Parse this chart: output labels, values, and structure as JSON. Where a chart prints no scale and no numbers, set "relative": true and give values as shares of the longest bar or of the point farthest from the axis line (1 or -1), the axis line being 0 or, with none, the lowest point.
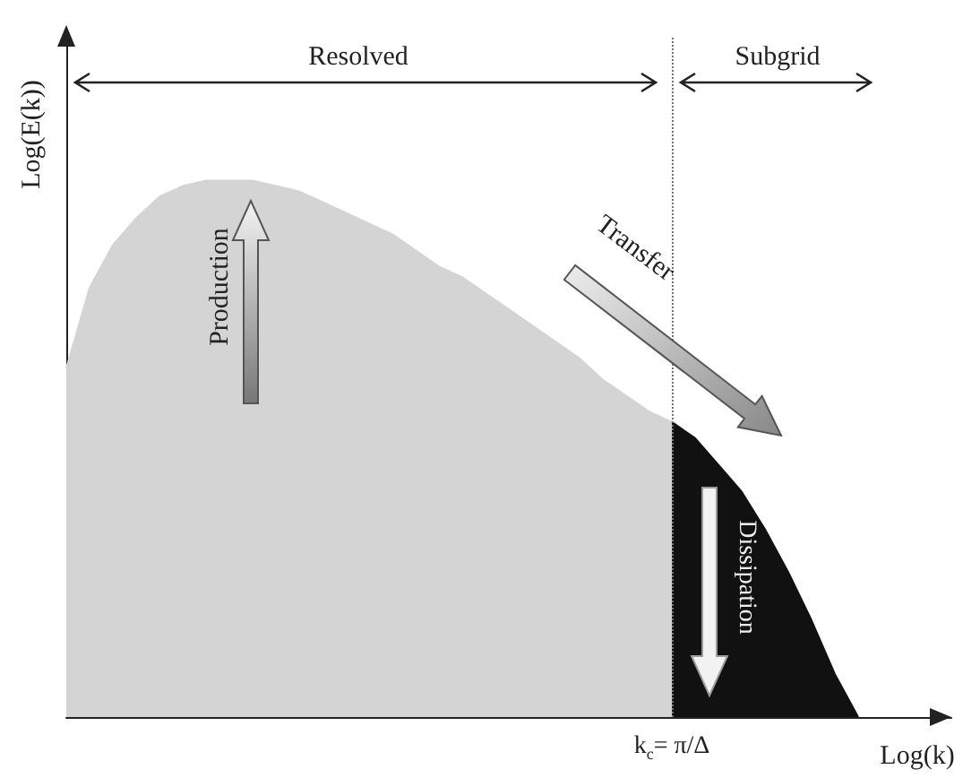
{
  "chart_data": {
    "type": "area",
    "relative": true,
    "xlabel": "Log(k)",
    "ylabel": "Log(E(k))",
    "categories": [
      null,
      null,
      null,
      null,
      null,
      null,
      null,
      null,
      null,
      null,
      null,
      null,
      null,
      null,
      null,
      null,
      null,
      null,
      null,
      null,
      null,
      null,
      null,
      null,
      null,
      null,
      null,
      null,
      null,
      null,
      null,
      null,
      null,
      null,
      null,
      null,
      null,
      null,
      null
    ],
    "series": [
      {
        "color": "#d4d4d4",
        "values": [
          0.65,
          0.8,
          0.88,
          0.93,
          0.97,
          0.99,
          1.0,
          1.0,
          1.0,
          0.99,
          0.98,
          0.96,
          0.94,
          0.92,
          0.9,
          0.87,
          0.84,
          0.82,
          0.79,
          0.76,
          0.73,
          0.7,
          0.67,
          0.63,
          0.6,
          0.57,
          0.55,
          null,
          null,
          null,
          null,
          null,
          null,
          null,
          null,
          null,
          null,
          null,
          null
        ]
      },
      {
        "color": "#111111",
        "values": [
          null,
          null,
          null,
          null,
          null,
          null,
          null,
          null,
          null,
          null,
          null,
          null,
          null,
          null,
          null,
          null,
          null,
          null,
          null,
          null,
          null,
          null,
          null,
          null,
          null,
          null,
          0.55,
          0.52,
          0.47,
          0.42,
          0.35,
          0.27,
          0.18,
          0.08,
          0,
          null,
          null,
          null,
          null
        ]
      }
    ],
    "annotations": [
      "Resolved",
      "Subgrid",
      "Production",
      "Transfer",
      "Dissipation",
      "k$_{c}$= π/Δ"
    ]
  }
}
